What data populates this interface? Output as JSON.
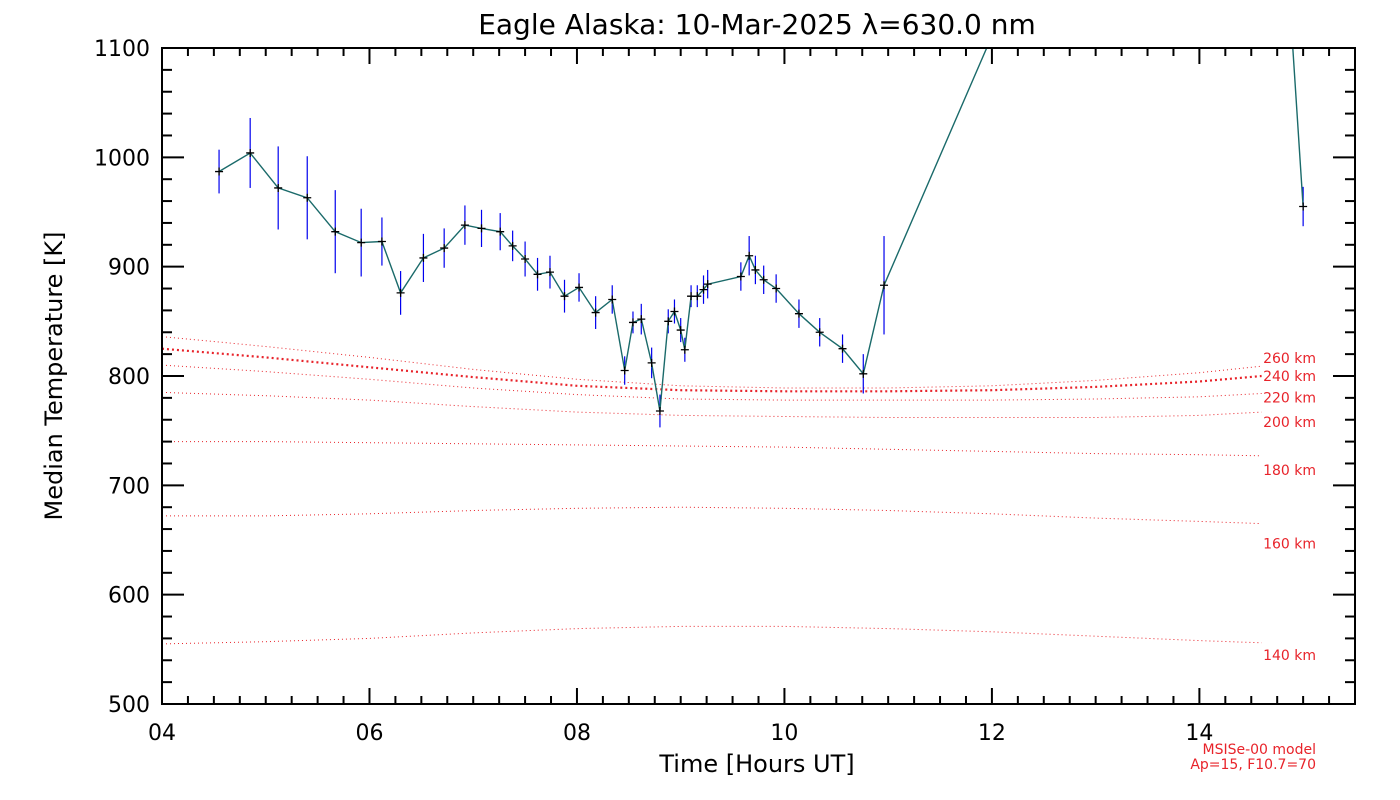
{
  "chart_data": {
    "type": "line",
    "title": "Eagle Alaska: 10-Mar-2025 λ=630.0 nm",
    "xlabel": "Time [Hours UT]",
    "ylabel": "Median Temperature [K]",
    "xlim": [
      4,
      15.5
    ],
    "ylim": [
      500,
      1100
    ],
    "xticks": [
      4,
      6,
      8,
      10,
      12,
      14
    ],
    "xtick_labels": [
      "04",
      "06",
      "08",
      "10",
      "12",
      "14"
    ],
    "yticks": [
      500,
      600,
      700,
      800,
      900,
      1000,
      1100
    ],
    "ytick_labels": [
      "500",
      "600",
      "700",
      "800",
      "900",
      "1000",
      "1100"
    ],
    "colors": {
      "data_line": "#1a6a6a",
      "error_bars": "#0000ee",
      "markers": "#000000",
      "model": "#e8232a"
    },
    "series": [
      {
        "name": "Median temperature",
        "x": [
          4.55,
          4.85,
          5.12,
          5.4,
          5.67,
          5.92,
          6.12,
          6.3,
          6.52,
          6.72,
          6.92,
          7.08,
          7.26,
          7.38,
          7.5,
          7.62,
          7.74,
          7.88,
          8.02,
          8.18,
          8.34,
          8.46,
          8.54,
          8.62,
          8.72,
          8.8,
          8.88,
          8.94,
          9.0,
          9.04,
          9.1,
          9.16,
          9.22,
          9.26,
          9.58,
          9.66,
          9.72,
          9.8,
          9.92,
          10.14,
          10.34,
          10.56,
          10.76,
          10.96,
          11.95,
          14.9,
          15.0
        ],
        "y": [
          987,
          1004,
          972,
          963,
          932,
          922,
          923,
          876,
          908,
          917,
          938,
          935,
          932,
          919,
          907,
          893,
          895,
          873,
          881,
          858,
          870,
          805,
          849,
          852,
          812,
          768,
          850,
          859,
          842,
          824,
          873,
          873,
          879,
          884,
          891,
          910,
          897,
          888,
          880,
          857,
          840,
          825,
          802,
          883,
          1100,
          1100,
          955
        ],
        "err": [
          20,
          32,
          38,
          38,
          38,
          31,
          22,
          20,
          22,
          18,
          18,
          17,
          17,
          14,
          16,
          15,
          15,
          15,
          13,
          15,
          13,
          13,
          10,
          14,
          14,
          15,
          11,
          11,
          11,
          11,
          10,
          10,
          13,
          13,
          13,
          18,
          13,
          13,
          13,
          13,
          13,
          13,
          18,
          45,
          0,
          0,
          18
        ]
      }
    ],
    "model_curves": {
      "x": [
        4.0,
        5.0,
        6.0,
        7.0,
        8.0,
        9.0,
        10.0,
        11.0,
        12.0,
        13.0,
        14.0,
        14.6
      ],
      "curves": [
        {
          "label": "140 km",
          "y": [
            555,
            557,
            560,
            565,
            569,
            571,
            571,
            569,
            566,
            562,
            558,
            556
          ]
        },
        {
          "label": "160 km",
          "y": [
            672,
            672,
            674,
            677,
            679,
            680,
            679,
            677,
            674,
            670,
            667,
            665
          ]
        },
        {
          "label": "180 km",
          "y": [
            740,
            740,
            739,
            738,
            737,
            736,
            735,
            733,
            731,
            729,
            728,
            727
          ]
        },
        {
          "label": "200 km",
          "y": [
            785,
            782,
            778,
            772,
            767,
            764,
            763,
            762,
            762,
            762,
            764,
            767
          ]
        },
        {
          "label": "220 km",
          "y": [
            810,
            804,
            797,
            789,
            783,
            779,
            778,
            778,
            778,
            779,
            781,
            784
          ]
        },
        {
          "label": "240 km",
          "y": [
            825,
            817,
            808,
            799,
            791,
            787,
            786,
            786,
            787,
            790,
            795,
            800
          ]
        },
        {
          "label": "260 km",
          "y": [
            836,
            827,
            817,
            806,
            797,
            791,
            789,
            789,
            791,
            796,
            803,
            809
          ]
        }
      ]
    },
    "annotations": [
      "MSISe-00 model",
      "Ap=15, F10.7=70"
    ]
  }
}
